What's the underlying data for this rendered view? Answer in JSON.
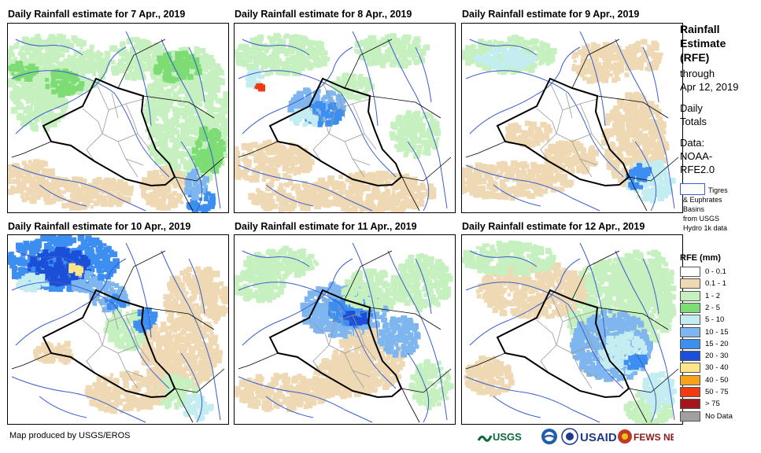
{
  "panels": [
    {
      "title": "Daily Rainfall estimate for 7 Apr., 2019"
    },
    {
      "title": "Daily Rainfall estimate for 8 Apr., 2019"
    },
    {
      "title": "Daily Rainfall estimate for 9 Apr., 2019"
    },
    {
      "title": "Daily Rainfall estimate for 10 Apr., 2019"
    },
    {
      "title": "Daily Rainfall estimate for 11 Apr., 2019"
    },
    {
      "title": "Daily Rainfall estimate for 12 Apr., 2019"
    }
  ],
  "sidebar": {
    "title_lines": [
      "Rainfall",
      "Estimate",
      "(RFE)"
    ],
    "through_lines": [
      "through",
      "Apr 12, 2019"
    ],
    "daily_lines": [
      "Daily",
      "Totals"
    ],
    "data_lines": [
      "Data:",
      "NOAA-",
      "RFE2.0"
    ],
    "basin_lines": [
      "Tigres",
      "& Euphrates",
      "Basins",
      "from USGS",
      "Hydro 1k data"
    ]
  },
  "legend": {
    "title": "RFE (mm)",
    "items": [
      {
        "label": "0 - 0.1",
        "color": "#ffffff"
      },
      {
        "label": "0.1 - 1",
        "color": "#eed9b4"
      },
      {
        "label": "1 - 2",
        "color": "#c6f0bf"
      },
      {
        "label": "2 - 5",
        "color": "#7ddc74"
      },
      {
        "label": "5 - 10",
        "color": "#c4edf2"
      },
      {
        "label": "10 - 15",
        "color": "#7fb6f0"
      },
      {
        "label": "15 - 20",
        "color": "#3c8ef0"
      },
      {
        "label": "20 - 30",
        "color": "#1c4fd8"
      },
      {
        "label": "30 - 40",
        "color": "#fde68a"
      },
      {
        "label": "40 - 50",
        "color": "#f7a21a"
      },
      {
        "label": "50 - 75",
        "color": "#f23a10"
      },
      {
        "label": "> 75",
        "color": "#a3161c"
      },
      {
        "label": "No Data",
        "color": "#a0a0a0"
      }
    ]
  },
  "footer": {
    "credit": "Map produced by USGS/EROS"
  },
  "logos": [
    "USGS",
    "NOAA",
    "USAID",
    "FEWS NET"
  ]
}
